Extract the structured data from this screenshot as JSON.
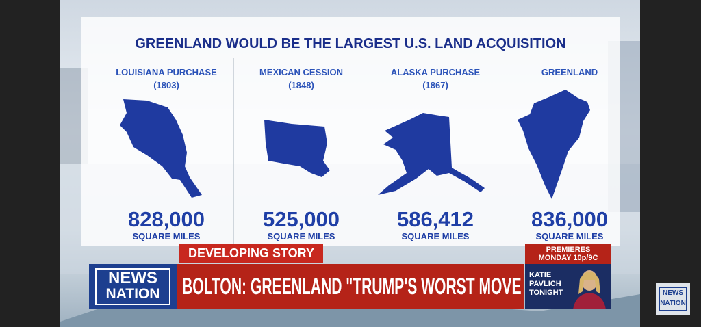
{
  "graphic": {
    "title": "GREENLAND WOULD BE THE LARGEST U.S. LAND ACQUISITION",
    "items": [
      {
        "name": "LOUISIANA PURCHASE",
        "year": "(1803)",
        "area": "828,000",
        "unit": "SQUARE MILES"
      },
      {
        "name": "MEXICAN CESSION",
        "year": "(1848)",
        "area": "525,000",
        "unit": "SQUARE MILES"
      },
      {
        "name": "ALASKA PURCHASE",
        "year": "(1867)",
        "area": "586,412",
        "unit": "SQUARE MILES"
      },
      {
        "name": "GREENLAND",
        "area": "836,000",
        "unit": "SQUARE MILES"
      }
    ]
  },
  "lower_third": {
    "tag": "DEVELOPING STORY",
    "headline": "BOLTON: GREENLAND \"TRUMP'S WORST MOVE YET\"",
    "logo": [
      "NEWS",
      "NATION"
    ]
  },
  "promo": {
    "line1": "PREMIERES",
    "line2": "MONDAY 10p/9C",
    "show": [
      "KATIE",
      "PAVLICH",
      "TONIGHT"
    ]
  },
  "watermark": [
    "NEWS",
    "NATION"
  ]
}
